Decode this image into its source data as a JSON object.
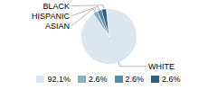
{
  "chart_data": {
    "type": "pie",
    "categories": [
      "WHITE",
      "ASIAN",
      "HISPANIC",
      "BLACK"
    ],
    "values": [
      92.1,
      2.6,
      2.6,
      2.6
    ],
    "value_labels": [
      "92.1%",
      "2.6%",
      "2.6%",
      "2.6%"
    ],
    "colors": [
      "#dce6f0",
      "#8cafc0",
      "#5b8aa8",
      "#2e6080"
    ],
    "legend": "bottom"
  }
}
